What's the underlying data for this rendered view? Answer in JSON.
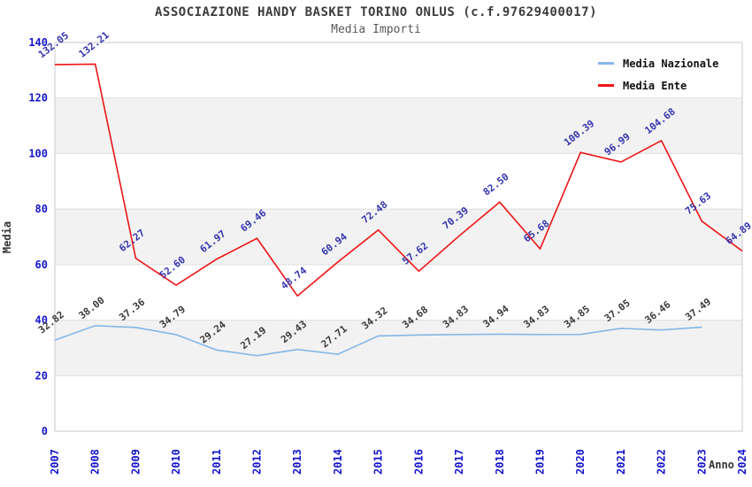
{
  "header": {
    "title": "ASSOCIAZIONE HANDY BASKET TORINO ONLUS (c.f.97629400017)",
    "subtitle": "Media Importi"
  },
  "chart_data": {
    "type": "line",
    "x": [
      "2007",
      "2008",
      "2009",
      "2010",
      "2011",
      "2012",
      "2013",
      "2014",
      "2015",
      "2016",
      "2017",
      "2018",
      "2019",
      "2020",
      "2021",
      "2022",
      "2023",
      "2024"
    ],
    "xlabel": "Anno",
    "ylabel": "Media",
    "ylim": [
      0,
      140
    ],
    "yticks": [
      0,
      20,
      40,
      60,
      80,
      100,
      120,
      140
    ],
    "grid": "horizontal",
    "legend_position": "top-right",
    "series": [
      {
        "name": "Media Nazionale",
        "color": "#85b7e8",
        "label_color": "#3a3a3a",
        "values": [
          32.82,
          38.0,
          37.36,
          34.79,
          29.24,
          27.19,
          29.43,
          27.71,
          34.32,
          34.68,
          34.83,
          34.94,
          34.83,
          34.85,
          37.05,
          36.46,
          37.49,
          null
        ]
      },
      {
        "name": "Media Ente",
        "color": "#ee1414",
        "label_color": "#3434b0",
        "values": [
          132.05,
          132.21,
          62.27,
          52.6,
          61.97,
          69.46,
          48.74,
          60.94,
          72.48,
          57.62,
          70.39,
          82.5,
          65.68,
          100.39,
          96.99,
          104.68,
          75.63,
          64.89
        ]
      }
    ],
    "colors": {
      "band": "#f2f2f2",
      "grid": "#dedede",
      "border": "#c9c9c9",
      "tick_label": "#1414cc",
      "axis_title": "#333333"
    }
  }
}
